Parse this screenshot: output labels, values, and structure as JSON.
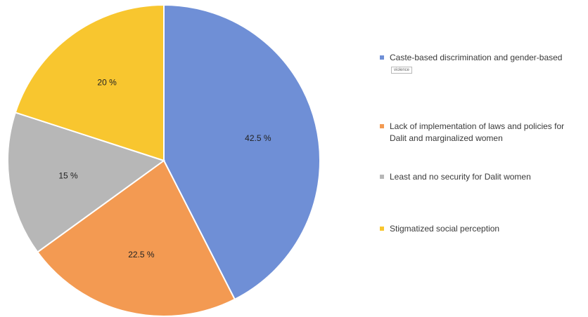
{
  "chart_data": {
    "type": "pie",
    "slices": [
      {
        "label": "Caste-based discrimination and gender-based",
        "value": 42.5,
        "value_label": "42.5 %",
        "color": "#6f8fd6"
      },
      {
        "label": "Lack of implementation of laws and policies for Dalit and marginalized women",
        "value": 22.5,
        "value_label": "22.5 %",
        "color": "#f39a52"
      },
      {
        "label": "Least and no security for Dalit women",
        "value": 15,
        "value_label": "15 %",
        "color": "#b7b7b7"
      },
      {
        "label": "Stigmatized social perception",
        "value": 20,
        "value_label": "20 %",
        "color": "#f8c62f"
      }
    ],
    "legend_position": "right",
    "start_angle": "top",
    "direction": "clockwise"
  },
  "legend": {
    "items": [
      {
        "label": "Caste-based discrimination and gender-based",
        "note": "violence"
      },
      {
        "label": "Lack of implementation of laws and policies for Dalit and marginalized women"
      },
      {
        "label": "Least and no security for Dalit women"
      },
      {
        "label": "Stigmatized social perception"
      }
    ]
  }
}
